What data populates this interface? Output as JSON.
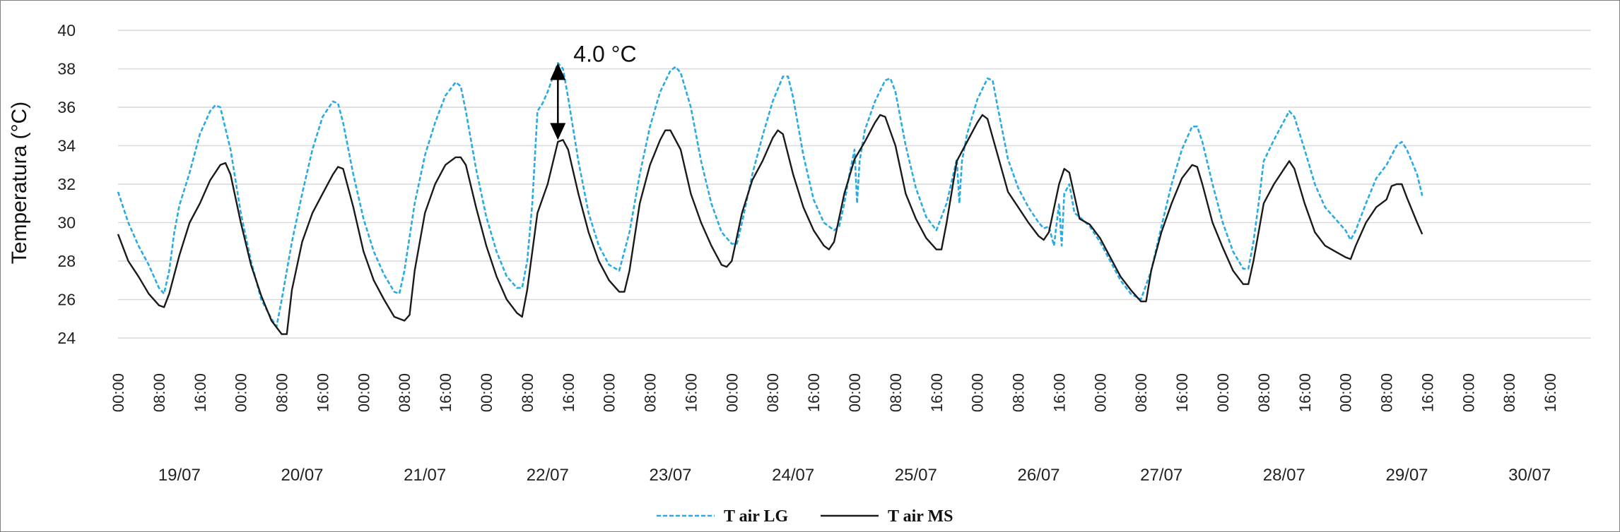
{
  "chart_data": {
    "type": "line",
    "title": "",
    "xlabel": "",
    "ylabel": "Temperatura (°C)",
    "ylim": [
      24,
      40
    ],
    "yticks": [
      24,
      26,
      28,
      30,
      32,
      34,
      36,
      38,
      40
    ],
    "grid": true,
    "legend_position": "bottom-center",
    "time_tick_labels": [
      "00:00",
      "08:00",
      "16:00"
    ],
    "dates": [
      "19/07",
      "20/07",
      "21/07",
      "22/07",
      "23/07",
      "24/07",
      "25/07",
      "26/07",
      "27/07",
      "28/07",
      "29/07",
      "30/07"
    ],
    "x_unit": "hour (0 = 19/07 00:00)",
    "annotation": {
      "text": "4.0 °C",
      "x": 86,
      "y_top": 38.3,
      "y_bottom": 34.3
    },
    "series": [
      {
        "name": "T air LG",
        "color": "#29ABE2",
        "style": "dashed",
        "points": [
          [
            0,
            31.6
          ],
          [
            2,
            30.0
          ],
          [
            4,
            28.8
          ],
          [
            6,
            27.8
          ],
          [
            8,
            26.6
          ],
          [
            9,
            26.3
          ],
          [
            10,
            27.5
          ],
          [
            11,
            29.5
          ],
          [
            12,
            30.9
          ],
          [
            14,
            32.6
          ],
          [
            16,
            34.6
          ],
          [
            18,
            35.8
          ],
          [
            19,
            36.1
          ],
          [
            20,
            36.0
          ],
          [
            22,
            33.8
          ],
          [
            24,
            30.5
          ],
          [
            26,
            28.0
          ],
          [
            28,
            26.0
          ],
          [
            30,
            25.0
          ],
          [
            31,
            24.6
          ],
          [
            32,
            26.0
          ],
          [
            34,
            29.0
          ],
          [
            36,
            31.5
          ],
          [
            38,
            33.8
          ],
          [
            40,
            35.5
          ],
          [
            42,
            36.3
          ],
          [
            43,
            36.2
          ],
          [
            44,
            35.2
          ],
          [
            46,
            32.5
          ],
          [
            48,
            30.2
          ],
          [
            50,
            28.5
          ],
          [
            52,
            27.3
          ],
          [
            54,
            26.4
          ],
          [
            55,
            26.3
          ],
          [
            56,
            27.5
          ],
          [
            58,
            31.0
          ],
          [
            60,
            33.5
          ],
          [
            62,
            35.2
          ],
          [
            64,
            36.6
          ],
          [
            66,
            37.3
          ],
          [
            67,
            37.1
          ],
          [
            68,
            35.8
          ],
          [
            70,
            32.8
          ],
          [
            72,
            30.3
          ],
          [
            74,
            28.5
          ],
          [
            76,
            27.2
          ],
          [
            78,
            26.6
          ],
          [
            79,
            26.6
          ],
          [
            80,
            28.0
          ],
          [
            81,
            31.0
          ],
          [
            82,
            35.8
          ],
          [
            83,
            36.2
          ],
          [
            84,
            36.8
          ],
          [
            86,
            38.3
          ],
          [
            87,
            38.0
          ],
          [
            88,
            36.5
          ],
          [
            90,
            33.2
          ],
          [
            92,
            30.5
          ],
          [
            94,
            28.8
          ],
          [
            96,
            27.8
          ],
          [
            98,
            27.5
          ],
          [
            100,
            29.5
          ],
          [
            102,
            32.5
          ],
          [
            104,
            35.0
          ],
          [
            106,
            36.8
          ],
          [
            108,
            37.9
          ],
          [
            109,
            38.1
          ],
          [
            110,
            37.8
          ],
          [
            112,
            36.0
          ],
          [
            114,
            33.2
          ],
          [
            116,
            31.0
          ],
          [
            118,
            29.5
          ],
          [
            120,
            28.9
          ],
          [
            121,
            28.9
          ],
          [
            122,
            30.0
          ],
          [
            124,
            32.5
          ],
          [
            126,
            34.5
          ],
          [
            128,
            36.3
          ],
          [
            130,
            37.6
          ],
          [
            131,
            37.6
          ],
          [
            132,
            36.5
          ],
          [
            134,
            33.5
          ],
          [
            136,
            31.2
          ],
          [
            138,
            30.0
          ],
          [
            140,
            29.6
          ],
          [
            141,
            29.8
          ],
          [
            142,
            31.0
          ],
          [
            143,
            32.5
          ],
          [
            144,
            33.8
          ],
          [
            144.5,
            31.0
          ],
          [
            145,
            33.2
          ],
          [
            146,
            34.8
          ],
          [
            148,
            36.3
          ],
          [
            150,
            37.4
          ],
          [
            151,
            37.5
          ],
          [
            152,
            36.8
          ],
          [
            154,
            34.0
          ],
          [
            156,
            31.8
          ],
          [
            158,
            30.3
          ],
          [
            160,
            29.6
          ],
          [
            162,
            31.0
          ],
          [
            164,
            33.3
          ],
          [
            164.5,
            31.0
          ],
          [
            165,
            33.2
          ],
          [
            166,
            34.6
          ],
          [
            168,
            36.4
          ],
          [
            170,
            37.5
          ],
          [
            171,
            37.4
          ],
          [
            172,
            36.0
          ],
          [
            174,
            33.3
          ],
          [
            176,
            31.8
          ],
          [
            178,
            30.8
          ],
          [
            180,
            30.0
          ],
          [
            181,
            29.7
          ],
          [
            182,
            29.8
          ],
          [
            183,
            28.8
          ],
          [
            184,
            31.0
          ],
          [
            184.5,
            28.8
          ],
          [
            185,
            31.5
          ],
          [
            186,
            32.0
          ],
          [
            187,
            30.5
          ],
          [
            188,
            30.3
          ],
          [
            190,
            29.8
          ],
          [
            192,
            29.0
          ],
          [
            194,
            28.0
          ],
          [
            196,
            27.0
          ],
          [
            198,
            26.3
          ],
          [
            200,
            26.0
          ],
          [
            202,
            27.5
          ],
          [
            204,
            29.8
          ],
          [
            206,
            32.0
          ],
          [
            208,
            33.8
          ],
          [
            210,
            35.0
          ],
          [
            211,
            35.0
          ],
          [
            212,
            34.2
          ],
          [
            214,
            32.0
          ],
          [
            216,
            30.0
          ],
          [
            218,
            28.5
          ],
          [
            220,
            27.6
          ],
          [
            221,
            27.6
          ],
          [
            222,
            29.0
          ],
          [
            223,
            31.0
          ],
          [
            224,
            33.2
          ],
          [
            226,
            34.3
          ],
          [
            228,
            35.3
          ],
          [
            229,
            35.8
          ],
          [
            230,
            35.5
          ],
          [
            232,
            33.8
          ],
          [
            234,
            32.0
          ],
          [
            236,
            30.8
          ],
          [
            238,
            30.2
          ],
          [
            240,
            29.6
          ],
          [
            241,
            29.1
          ],
          [
            242,
            29.6
          ],
          [
            244,
            31.0
          ],
          [
            246,
            32.3
          ],
          [
            248,
            33.0
          ],
          [
            250,
            34.0
          ],
          [
            251,
            34.2
          ],
          [
            252,
            33.8
          ],
          [
            254,
            32.5
          ],
          [
            255,
            31.4
          ]
        ]
      },
      {
        "name": "T air MS",
        "color": "#1A1A1A",
        "style": "solid",
        "points": [
          [
            0,
            29.4
          ],
          [
            2,
            28.0
          ],
          [
            4,
            27.2
          ],
          [
            6,
            26.3
          ],
          [
            8,
            25.7
          ],
          [
            9,
            25.6
          ],
          [
            10,
            26.3
          ],
          [
            12,
            28.3
          ],
          [
            14,
            30.0
          ],
          [
            16,
            31.0
          ],
          [
            18,
            32.2
          ],
          [
            20,
            33.0
          ],
          [
            21,
            33.1
          ],
          [
            22,
            32.5
          ],
          [
            24,
            30.0
          ],
          [
            26,
            27.8
          ],
          [
            28,
            26.2
          ],
          [
            30,
            24.9
          ],
          [
            32,
            24.2
          ],
          [
            33,
            24.2
          ],
          [
            34,
            26.5
          ],
          [
            36,
            29.0
          ],
          [
            38,
            30.5
          ],
          [
            40,
            31.5
          ],
          [
            42,
            32.5
          ],
          [
            43,
            32.9
          ],
          [
            44,
            32.8
          ],
          [
            46,
            30.8
          ],
          [
            48,
            28.5
          ],
          [
            50,
            27.0
          ],
          [
            52,
            26.0
          ],
          [
            54,
            25.1
          ],
          [
            56,
            24.9
          ],
          [
            57,
            25.2
          ],
          [
            58,
            27.5
          ],
          [
            60,
            30.5
          ],
          [
            62,
            32.0
          ],
          [
            64,
            33.0
          ],
          [
            66,
            33.4
          ],
          [
            67,
            33.4
          ],
          [
            68,
            33.0
          ],
          [
            70,
            30.8
          ],
          [
            72,
            28.8
          ],
          [
            74,
            27.2
          ],
          [
            76,
            26.0
          ],
          [
            78,
            25.3
          ],
          [
            79,
            25.1
          ],
          [
            80,
            26.5
          ],
          [
            82,
            30.5
          ],
          [
            84,
            32.0
          ],
          [
            86,
            34.2
          ],
          [
            87,
            34.3
          ],
          [
            88,
            33.8
          ],
          [
            90,
            31.5
          ],
          [
            92,
            29.5
          ],
          [
            94,
            28.0
          ],
          [
            96,
            27.0
          ],
          [
            98,
            26.4
          ],
          [
            99,
            26.4
          ],
          [
            100,
            27.5
          ],
          [
            102,
            31.0
          ],
          [
            104,
            33.0
          ],
          [
            106,
            34.3
          ],
          [
            107,
            34.8
          ],
          [
            108,
            34.8
          ],
          [
            110,
            33.8
          ],
          [
            112,
            31.5
          ],
          [
            114,
            30.0
          ],
          [
            116,
            28.8
          ],
          [
            118,
            27.8
          ],
          [
            119,
            27.7
          ],
          [
            120,
            28.0
          ],
          [
            122,
            30.5
          ],
          [
            124,
            32.2
          ],
          [
            126,
            33.2
          ],
          [
            128,
            34.4
          ],
          [
            129,
            34.8
          ],
          [
            130,
            34.6
          ],
          [
            132,
            32.5
          ],
          [
            134,
            30.8
          ],
          [
            136,
            29.6
          ],
          [
            138,
            28.8
          ],
          [
            139,
            28.6
          ],
          [
            140,
            29.0
          ],
          [
            142,
            31.5
          ],
          [
            144,
            33.3
          ],
          [
            146,
            34.2
          ],
          [
            148,
            35.2
          ],
          [
            149,
            35.6
          ],
          [
            150,
            35.5
          ],
          [
            152,
            34.0
          ],
          [
            154,
            31.5
          ],
          [
            156,
            30.2
          ],
          [
            158,
            29.2
          ],
          [
            160,
            28.6
          ],
          [
            161,
            28.6
          ],
          [
            162,
            30.0
          ],
          [
            164,
            33.2
          ],
          [
            166,
            34.2
          ],
          [
            168,
            35.2
          ],
          [
            169,
            35.6
          ],
          [
            170,
            35.4
          ],
          [
            172,
            33.5
          ],
          [
            174,
            31.6
          ],
          [
            176,
            30.8
          ],
          [
            178,
            30.0
          ],
          [
            180,
            29.3
          ],
          [
            181,
            29.1
          ],
          [
            182,
            29.5
          ],
          [
            184,
            32.0
          ],
          [
            185,
            32.8
          ],
          [
            186,
            32.6
          ],
          [
            188,
            30.2
          ],
          [
            190,
            29.9
          ],
          [
            192,
            29.2
          ],
          [
            194,
            28.2
          ],
          [
            196,
            27.2
          ],
          [
            198,
            26.5
          ],
          [
            200,
            25.9
          ],
          [
            201,
            25.9
          ],
          [
            202,
            27.5
          ],
          [
            204,
            29.5
          ],
          [
            206,
            31.0
          ],
          [
            208,
            32.3
          ],
          [
            210,
            33.0
          ],
          [
            211,
            32.9
          ],
          [
            212,
            32.0
          ],
          [
            214,
            30.0
          ],
          [
            216,
            28.7
          ],
          [
            218,
            27.5
          ],
          [
            220,
            26.8
          ],
          [
            221,
            26.8
          ],
          [
            222,
            28.0
          ],
          [
            224,
            31.0
          ],
          [
            226,
            32.0
          ],
          [
            228,
            32.8
          ],
          [
            229,
            33.2
          ],
          [
            230,
            32.8
          ],
          [
            232,
            31.0
          ],
          [
            234,
            29.5
          ],
          [
            236,
            28.8
          ],
          [
            238,
            28.5
          ],
          [
            240,
            28.2
          ],
          [
            241,
            28.1
          ],
          [
            242,
            28.8
          ],
          [
            244,
            30.0
          ],
          [
            246,
            30.8
          ],
          [
            248,
            31.2
          ],
          [
            249,
            31.9
          ],
          [
            250,
            32.0
          ],
          [
            251,
            32.0
          ],
          [
            252,
            31.3
          ],
          [
            254,
            30.0
          ],
          [
            255,
            29.4
          ]
        ]
      }
    ]
  }
}
